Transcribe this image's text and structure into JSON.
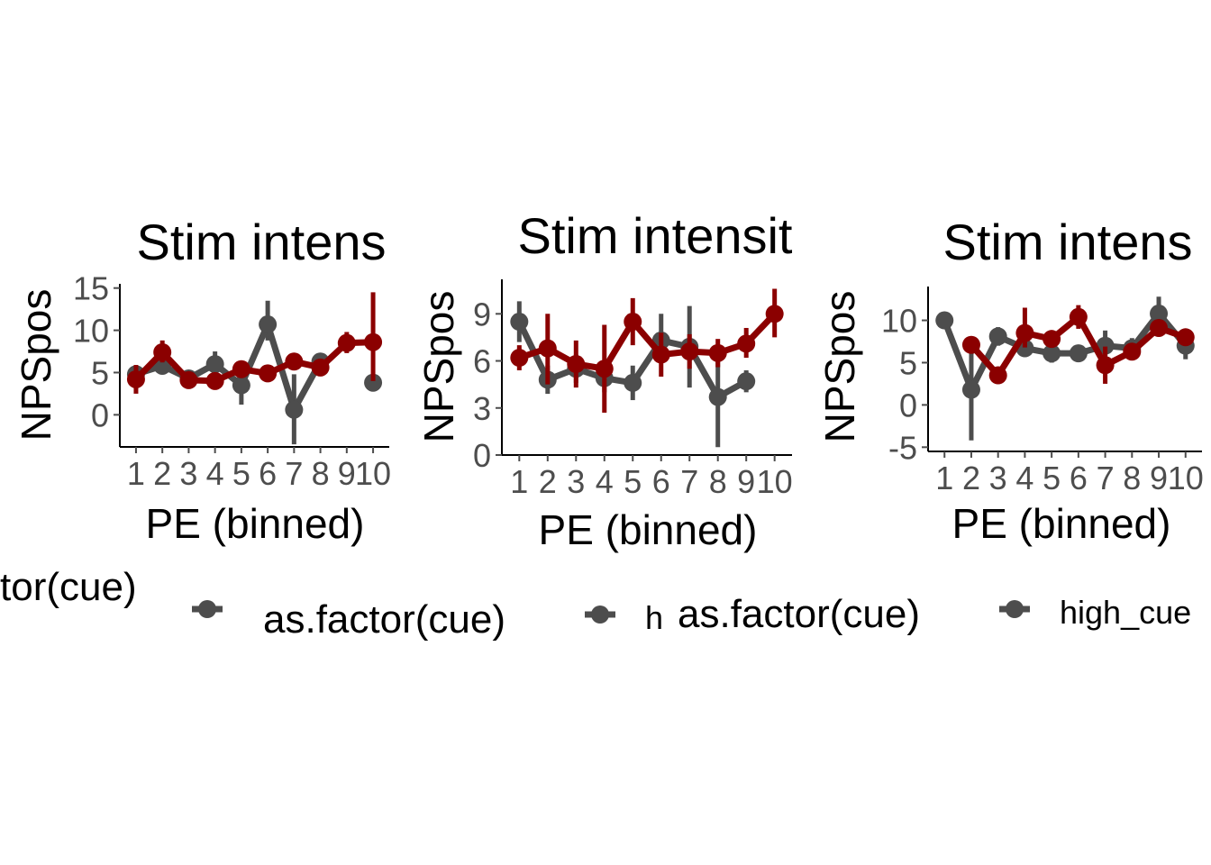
{
  "colors": {
    "low": "#4d4d4d",
    "high": "#8b0000",
    "axis": "#000000",
    "tick": "#4d4d4d"
  },
  "chart_data": [
    {
      "type": "line",
      "title": "Stim intens",
      "xlabel": "PE (binned)",
      "ylabel": "NPSpos",
      "categories": [
        "1",
        "2",
        "3",
        "4",
        "5",
        "6",
        "7",
        "8",
        "9",
        "10"
      ],
      "yticks": [
        0,
        5,
        10,
        15
      ],
      "ylim": [
        -3.8,
        15.5
      ],
      "grid": false,
      "series": [
        {
          "color": "low",
          "values": [
            4.8,
            5.8,
            4.3,
            6.0,
            3.5,
            10.7,
            0.6,
            6.3,
            null,
            3.8
          ],
          "lower": [
            3.8,
            4.8,
            3.5,
            4.8,
            1.2,
            8.8,
            -3.5,
            5.5,
            null,
            3.0
          ],
          "upper": [
            5.8,
            6.8,
            5.1,
            7.5,
            5.5,
            13.5,
            4.8,
            7.1,
            null,
            4.6
          ]
        },
        {
          "color": "high",
          "values": [
            4.2,
            7.4,
            4.1,
            4.0,
            5.4,
            4.9,
            6.3,
            5.6,
            8.5,
            8.6
          ],
          "lower": [
            2.5,
            6.2,
            3.2,
            3.2,
            4.6,
            4.1,
            5.5,
            4.6,
            7.3,
            4.0
          ],
          "upper": [
            5.9,
            8.8,
            5.0,
            4.8,
            6.2,
            5.7,
            7.1,
            6.6,
            9.8,
            14.5
          ]
        }
      ],
      "legend": {
        "title": "as.factor(cue)",
        "labels": []
      }
    },
    {
      "type": "line",
      "title": "Stim intensit",
      "xlabel": "PE (binned)",
      "ylabel": "NPSpos",
      "categories": [
        "1",
        "2",
        "3",
        "4",
        "5",
        "6",
        "7",
        "8",
        "9",
        "10"
      ],
      "yticks": [
        0,
        3,
        6,
        9
      ],
      "ylim": [
        0,
        11.2
      ],
      "grid": false,
      "series": [
        {
          "color": "low",
          "values": [
            8.5,
            4.8,
            5.5,
            4.9,
            4.6,
            7.3,
            6.9,
            3.7,
            4.7,
            null
          ],
          "lower": [
            7.2,
            3.9,
            4.6,
            4.0,
            3.5,
            6.0,
            4.3,
            0.5,
            4.0,
            null
          ],
          "upper": [
            9.8,
            5.7,
            6.4,
            5.8,
            5.7,
            9.0,
            9.5,
            6.5,
            5.4,
            null
          ]
        },
        {
          "color": "high",
          "values": [
            6.2,
            6.8,
            5.8,
            5.5,
            8.5,
            6.4,
            6.6,
            6.5,
            7.1,
            9.0
          ],
          "lower": [
            5.4,
            4.5,
            4.3,
            2.7,
            7.0,
            5.0,
            5.5,
            5.6,
            6.2,
            7.5
          ],
          "upper": [
            7.0,
            9.0,
            7.3,
            8.3,
            10.0,
            7.8,
            7.7,
            7.4,
            8.1,
            10.6
          ]
        }
      ],
      "legend": {
        "title": "as.factor(cue)",
        "labels": [
          "h"
        ]
      }
    },
    {
      "type": "line",
      "title": "Stim intens",
      "xlabel": "PE (binned)",
      "ylabel": "NPSpos",
      "categories": [
        "1",
        "2",
        "3",
        "4",
        "5",
        "6",
        "7",
        "8",
        "9",
        "10"
      ],
      "yticks": [
        -5,
        0,
        5,
        10
      ],
      "ylim": [
        -5.5,
        14
      ],
      "grid": false,
      "series": [
        {
          "color": "low",
          "values": [
            10.0,
            1.8,
            8.1,
            6.7,
            6.1,
            6.1,
            7.0,
            6.7,
            10.8,
            7.0
          ],
          "lower": [
            9.3,
            -4.2,
            7.0,
            5.7,
            5.0,
            5.3,
            5.2,
            5.5,
            9.3,
            5.4
          ],
          "upper": [
            10.7,
            7.8,
            9.2,
            7.7,
            7.2,
            6.9,
            8.8,
            7.9,
            12.8,
            8.6
          ]
        },
        {
          "color": "high",
          "values": [
            null,
            7.1,
            3.5,
            8.5,
            7.8,
            10.4,
            4.7,
            6.3,
            9.1,
            8.0
          ],
          "lower": [
            null,
            6.1,
            2.6,
            6.8,
            6.8,
            9.0,
            2.5,
            5.3,
            8.1,
            7.0
          ],
          "upper": [
            null,
            8.1,
            4.4,
            11.5,
            8.8,
            11.8,
            6.9,
            7.3,
            10.1,
            9.0
          ]
        }
      ],
      "legend": {
        "title": "as.factor(cue)",
        "labels": [
          "high_cue"
        ]
      }
    }
  ],
  "legend_row": {
    "left_fragment": "tor(cue)"
  }
}
